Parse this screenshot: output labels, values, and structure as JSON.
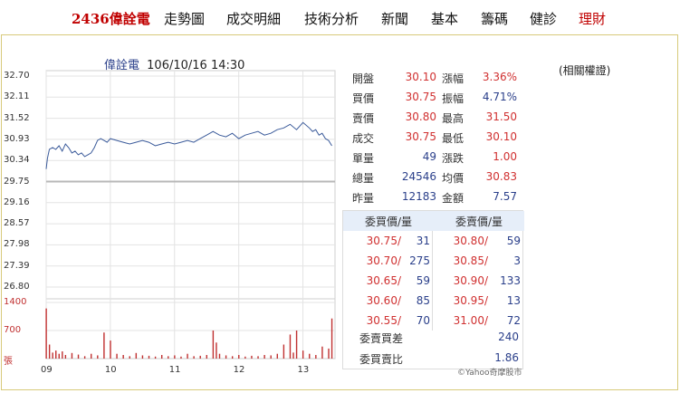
{
  "nav": {
    "items": [
      {
        "label": "2436偉詮電",
        "kind": "stock"
      },
      {
        "label": "走勢圖",
        "kind": "normal"
      },
      {
        "label": "成交明細",
        "kind": "normal"
      },
      {
        "label": "技術分析",
        "kind": "normal"
      },
      {
        "label": "新聞",
        "kind": "normal"
      },
      {
        "label": "基本",
        "kind": "normal"
      },
      {
        "label": "籌碼",
        "kind": "normal"
      },
      {
        "label": "健診",
        "kind": "normal"
      },
      {
        "label": "理財",
        "kind": "red"
      }
    ]
  },
  "header": {
    "name": "偉詮電",
    "datetime": "106/10/16 14:30"
  },
  "related_link": "(相關權證)",
  "quote": {
    "left": [
      {
        "label": "開盤",
        "value": "30.10",
        "tone": "up"
      },
      {
        "label": "買價",
        "value": "30.75",
        "tone": "up"
      },
      {
        "label": "賣價",
        "value": "30.80",
        "tone": "up"
      },
      {
        "label": "成交",
        "value": "30.75",
        "tone": "up"
      },
      {
        "label": "單量",
        "value": "49",
        "tone": "dn"
      },
      {
        "label": "總量",
        "value": "24546",
        "tone": "dn"
      },
      {
        "label": "昨量",
        "value": "12183",
        "tone": "dn"
      }
    ],
    "right": [
      {
        "label": "漲幅",
        "value": "3.36%",
        "tone": "up"
      },
      {
        "label": "振幅",
        "value": "4.71%",
        "tone": "dn"
      },
      {
        "label": "最高",
        "value": "31.50",
        "tone": "up"
      },
      {
        "label": "最低",
        "value": "30.10",
        "tone": "up"
      },
      {
        "label": "漲跌",
        "value": "1.00",
        "tone": "up"
      },
      {
        "label": "均價",
        "value": "30.83",
        "tone": "up"
      },
      {
        "label": "金額",
        "value": "7.57",
        "tone": "dn"
      }
    ]
  },
  "order_book": {
    "bid_header": "委買價/量",
    "ask_header": "委賣價/量",
    "rows": [
      {
        "bid_price": "30.75/",
        "bid_qty": "31",
        "ask_price": "30.80/",
        "ask_qty": "59"
      },
      {
        "bid_price": "30.70/",
        "bid_qty": "275",
        "ask_price": "30.85/",
        "ask_qty": "3"
      },
      {
        "bid_price": "30.65/",
        "bid_qty": "59",
        "ask_price": "30.90/",
        "ask_qty": "133"
      },
      {
        "bid_price": "30.60/",
        "bid_qty": "85",
        "ask_price": "30.95/",
        "ask_qty": "13"
      },
      {
        "bid_price": "30.55/",
        "bid_qty": "70",
        "ask_price": "31.00/",
        "ask_qty": "72"
      }
    ],
    "diff_label": "委賣買差",
    "diff_value": "240",
    "ratio_label": "委買賣比",
    "ratio_value": "1.86"
  },
  "copyright": "©Yahoo奇摩股市",
  "colors": {
    "up": "#d03030",
    "down": "#2a3f8a",
    "price_line": "#3a5a9a",
    "volume": "#c03030",
    "reference": "#b8b8b8",
    "border": "#d7ca7a"
  },
  "chart_data": {
    "type": "line",
    "title": "偉詮電 106/10/16 14:30",
    "price_ticks": [
      "32.70",
      "32.11",
      "31.52",
      "30.93",
      "30.34",
      "29.75",
      "29.16",
      "28.57",
      "27.98",
      "27.39",
      "26.80"
    ],
    "volume_ticks": [
      "1400",
      "700",
      "張"
    ],
    "x_ticks": [
      "09",
      "10",
      "11",
      "12",
      "13"
    ],
    "ylim": [
      26.8,
      32.7
    ],
    "volume_ylim": [
      0,
      1400
    ],
    "reference_price": 29.75,
    "x_range_hours": [
      9.0,
      13.5
    ],
    "price_series": {
      "x": [
        9.0,
        9.02,
        9.05,
        9.1,
        9.15,
        9.2,
        9.25,
        9.3,
        9.35,
        9.4,
        9.45,
        9.5,
        9.55,
        9.6,
        9.65,
        9.7,
        9.75,
        9.8,
        9.85,
        9.9,
        9.95,
        10.0,
        10.1,
        10.2,
        10.3,
        10.4,
        10.5,
        10.6,
        10.7,
        10.8,
        10.9,
        11.0,
        11.1,
        11.2,
        11.3,
        11.4,
        11.5,
        11.6,
        11.7,
        11.8,
        11.9,
        12.0,
        12.1,
        12.2,
        12.3,
        12.4,
        12.5,
        12.6,
        12.7,
        12.8,
        12.9,
        13.0,
        13.1,
        13.15,
        13.2,
        13.25,
        13.3,
        13.35,
        13.4,
        13.45
      ],
      "values": [
        30.1,
        30.4,
        30.65,
        30.7,
        30.65,
        30.75,
        30.6,
        30.8,
        30.7,
        30.55,
        30.6,
        30.5,
        30.55,
        30.45,
        30.5,
        30.55,
        30.7,
        30.9,
        30.95,
        30.9,
        30.85,
        30.95,
        30.9,
        30.85,
        30.8,
        30.85,
        30.9,
        30.85,
        30.75,
        30.8,
        30.85,
        30.8,
        30.85,
        30.9,
        30.85,
        30.95,
        31.05,
        31.15,
        31.05,
        31.0,
        31.1,
        30.95,
        31.05,
        31.1,
        31.15,
        31.05,
        31.1,
        31.2,
        31.25,
        31.35,
        31.2,
        31.4,
        31.25,
        31.15,
        31.2,
        31.05,
        31.1,
        30.95,
        30.9,
        30.75
      ]
    },
    "volume_series": {
      "x": [
        9.0,
        9.05,
        9.1,
        9.15,
        9.2,
        9.25,
        9.3,
        9.4,
        9.5,
        9.6,
        9.7,
        9.8,
        9.9,
        10.0,
        10.1,
        10.2,
        10.3,
        10.4,
        10.5,
        10.6,
        10.7,
        10.8,
        10.9,
        11.0,
        11.1,
        11.2,
        11.3,
        11.4,
        11.5,
        11.6,
        11.65,
        11.7,
        11.8,
        11.9,
        12.0,
        12.1,
        12.2,
        12.3,
        12.4,
        12.5,
        12.6,
        12.7,
        12.8,
        12.85,
        12.9,
        13.0,
        13.1,
        13.2,
        13.3,
        13.4,
        13.45
      ],
      "values": [
        1250,
        350,
        150,
        200,
        120,
        180,
        90,
        140,
        100,
        60,
        120,
        80,
        650,
        450,
        120,
        90,
        60,
        140,
        80,
        70,
        50,
        90,
        60,
        80,
        50,
        120,
        60,
        70,
        90,
        700,
        400,
        120,
        80,
        60,
        90,
        50,
        70,
        60,
        90,
        80,
        120,
        350,
        600,
        150,
        700,
        200,
        120,
        90,
        300,
        250,
        1000
      ]
    }
  }
}
